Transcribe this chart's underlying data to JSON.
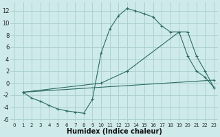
{
  "xlabel": "Humidex (Indice chaleur)",
  "background_color": "#ceeaea",
  "grid_color": "#aacece",
  "line_color": "#2a6b60",
  "xlim": [
    -0.5,
    23.5
  ],
  "ylim": [
    -6.5,
    13.5
  ],
  "yticks": [
    -6,
    -4,
    -2,
    0,
    2,
    4,
    6,
    8,
    10,
    12
  ],
  "xticks": [
    0,
    1,
    2,
    3,
    4,
    5,
    6,
    7,
    8,
    9,
    10,
    11,
    12,
    13,
    14,
    15,
    16,
    17,
    18,
    19,
    20,
    21,
    22,
    23
  ],
  "series1_x": [
    1,
    2,
    3,
    4,
    5,
    6,
    7,
    8,
    9,
    10,
    11,
    12,
    13,
    14,
    15,
    16,
    17,
    18,
    19,
    20,
    21,
    22,
    23
  ],
  "series1_y": [
    -1.5,
    -2.5,
    -3.0,
    -3.7,
    -4.3,
    -4.6,
    -4.8,
    -5.0,
    -2.7,
    5.0,
    9.0,
    11.2,
    12.4,
    12.0,
    11.5,
    11.0,
    9.5,
    8.5,
    8.5,
    4.5,
    2.0,
    1.0,
    -0.7
  ],
  "series2_x": [
    1,
    10,
    13,
    19,
    20,
    21,
    22,
    23
  ],
  "series2_y": [
    -1.5,
    0.0,
    2.0,
    8.5,
    8.5,
    4.5,
    2.0,
    -0.7
  ],
  "series3_x": [
    1,
    23
  ],
  "series3_y": [
    -1.5,
    0.5
  ]
}
